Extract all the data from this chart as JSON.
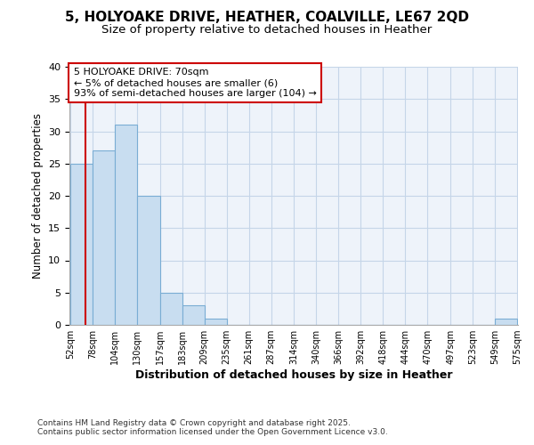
{
  "title1": "5, HOLYOAKE DRIVE, HEATHER, COALVILLE, LE67 2QD",
  "title2": "Size of property relative to detached houses in Heather",
  "xlabel": "Distribution of detached houses by size in Heather",
  "ylabel": "Number of detached properties",
  "bar_edges": [
    52,
    78,
    104,
    130,
    157,
    183,
    209,
    235,
    261,
    287,
    314,
    340,
    366,
    392,
    418,
    444,
    470,
    497,
    523,
    549,
    575
  ],
  "bar_heights": [
    25,
    27,
    31,
    20,
    5,
    3,
    1,
    0,
    0,
    0,
    0,
    0,
    0,
    0,
    0,
    0,
    0,
    0,
    0,
    1,
    0
  ],
  "bar_color": "#c8ddf0",
  "bar_edge_color": "#7aadd4",
  "property_size": 70,
  "red_line_color": "#cc0000",
  "annotation_line1": "5 HOLYOAKE DRIVE: 70sqm",
  "annotation_line2": "← 5% of detached houses are smaller (6)",
  "annotation_line3": "93% of semi-detached houses are larger (104) →",
  "annotation_box_edgecolor": "#cc0000",
  "ylim": [
    0,
    40
  ],
  "yticks": [
    0,
    5,
    10,
    15,
    20,
    25,
    30,
    35,
    40
  ],
  "footer1": "Contains HM Land Registry data © Crown copyright and database right 2025.",
  "footer2": "Contains public sector information licensed under the Open Government Licence v3.0.",
  "bg_color": "#eef3fa",
  "grid_color": "#c5d5e8",
  "title_fontsize": 11,
  "subtitle_fontsize": 9.5
}
